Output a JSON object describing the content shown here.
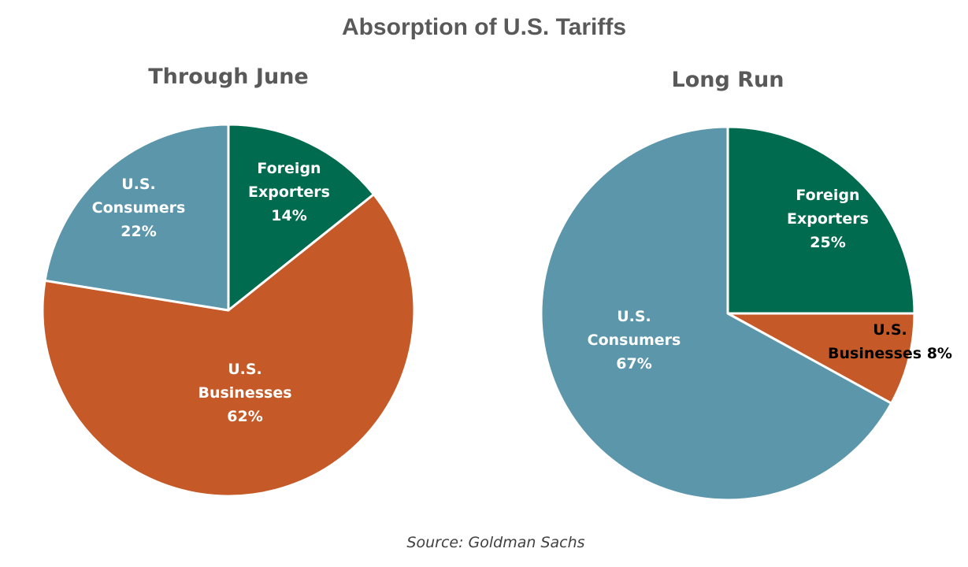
{
  "title": "Absorption of U.S. Tariffs",
  "source": "Source: Goldman Sachs",
  "chart_data": [
    {
      "type": "pie",
      "title": "Through June",
      "start_angle_deg": 0,
      "direction": "clockwise",
      "slices": [
        {
          "label_lines": [
            "Foreign",
            "Exporters",
            "14%"
          ],
          "name": "Foreign Exporters",
          "value": 14,
          "color": "#006B4E",
          "label_color": "#FFFFFF"
        },
        {
          "label_lines": [
            "U.S.",
            "Businesses",
            "62%"
          ],
          "name": "U.S. Businesses",
          "value": 62,
          "color": "#C55A28",
          "label_color": "#FFFFFF"
        },
        {
          "label_lines": [
            "U.S.",
            "Consumers",
            "22%"
          ],
          "name": "U.S. Consumers",
          "value": 22,
          "color": "#5B96AB",
          "label_color": "#FFFFFF"
        }
      ]
    },
    {
      "type": "pie",
      "title": "Long Run",
      "start_angle_deg": 0,
      "direction": "clockwise",
      "slices": [
        {
          "label_lines": [
            "Foreign",
            "Exporters",
            "25%"
          ],
          "name": "Foreign Exporters",
          "value": 25,
          "color": "#006B4E",
          "label_color": "#FFFFFF"
        },
        {
          "label_lines": [
            "U.S.",
            "Businesses 8%"
          ],
          "name": "U.S. Businesses",
          "value": 8,
          "color": "#C55A28",
          "label_color": "#000000"
        },
        {
          "label_lines": [
            "U.S.",
            "Consumers",
            "67%"
          ],
          "name": "U.S. Consumers",
          "value": 67,
          "color": "#5B96AB",
          "label_color": "#FFFFFF"
        }
      ]
    }
  ]
}
